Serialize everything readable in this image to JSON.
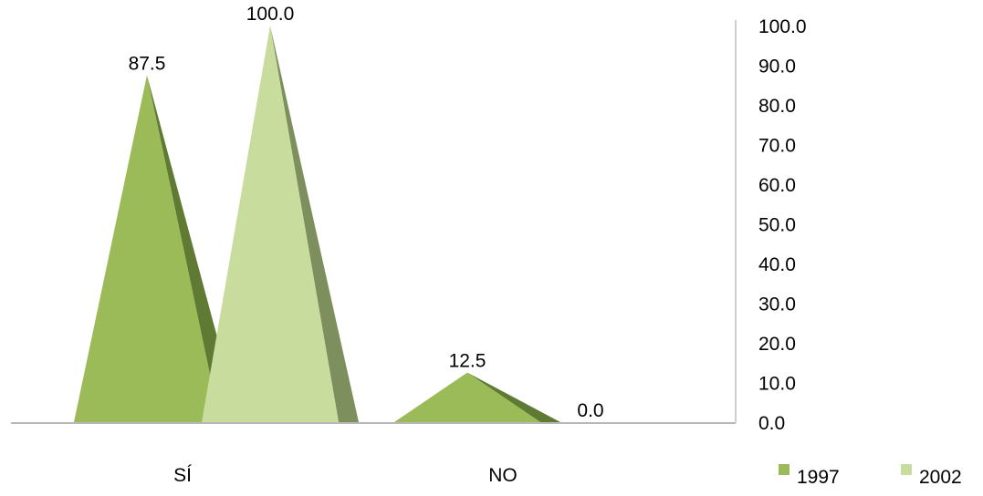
{
  "chart_data": {
    "type": "bar",
    "bar_shape": "pyramid",
    "categories": [
      "SÍ",
      "NO"
    ],
    "series": [
      {
        "name": "1997",
        "values": [
          87.5,
          12.5
        ],
        "color": "#9bbb59",
        "shade_color": "#5f7a32"
      },
      {
        "name": "2002",
        "values": [
          100.0,
          0.0
        ],
        "color": "#c8dd9d",
        "shade_color": "#7d8f5d"
      }
    ],
    "value_labels": [
      [
        "87.5",
        "12.5"
      ],
      [
        "100.0",
        "0.0"
      ]
    ],
    "y_ticks": [
      "0.0",
      "10.0",
      "20.0",
      "30.0",
      "40.0",
      "50.0",
      "60.0",
      "70.0",
      "80.0",
      "90.0",
      "100.0"
    ],
    "ylim": [
      0,
      100
    ],
    "y_axis_position": "right",
    "legend_position": "bottom-right",
    "grid": false,
    "title": "",
    "xlabel": "",
    "ylabel": ""
  }
}
